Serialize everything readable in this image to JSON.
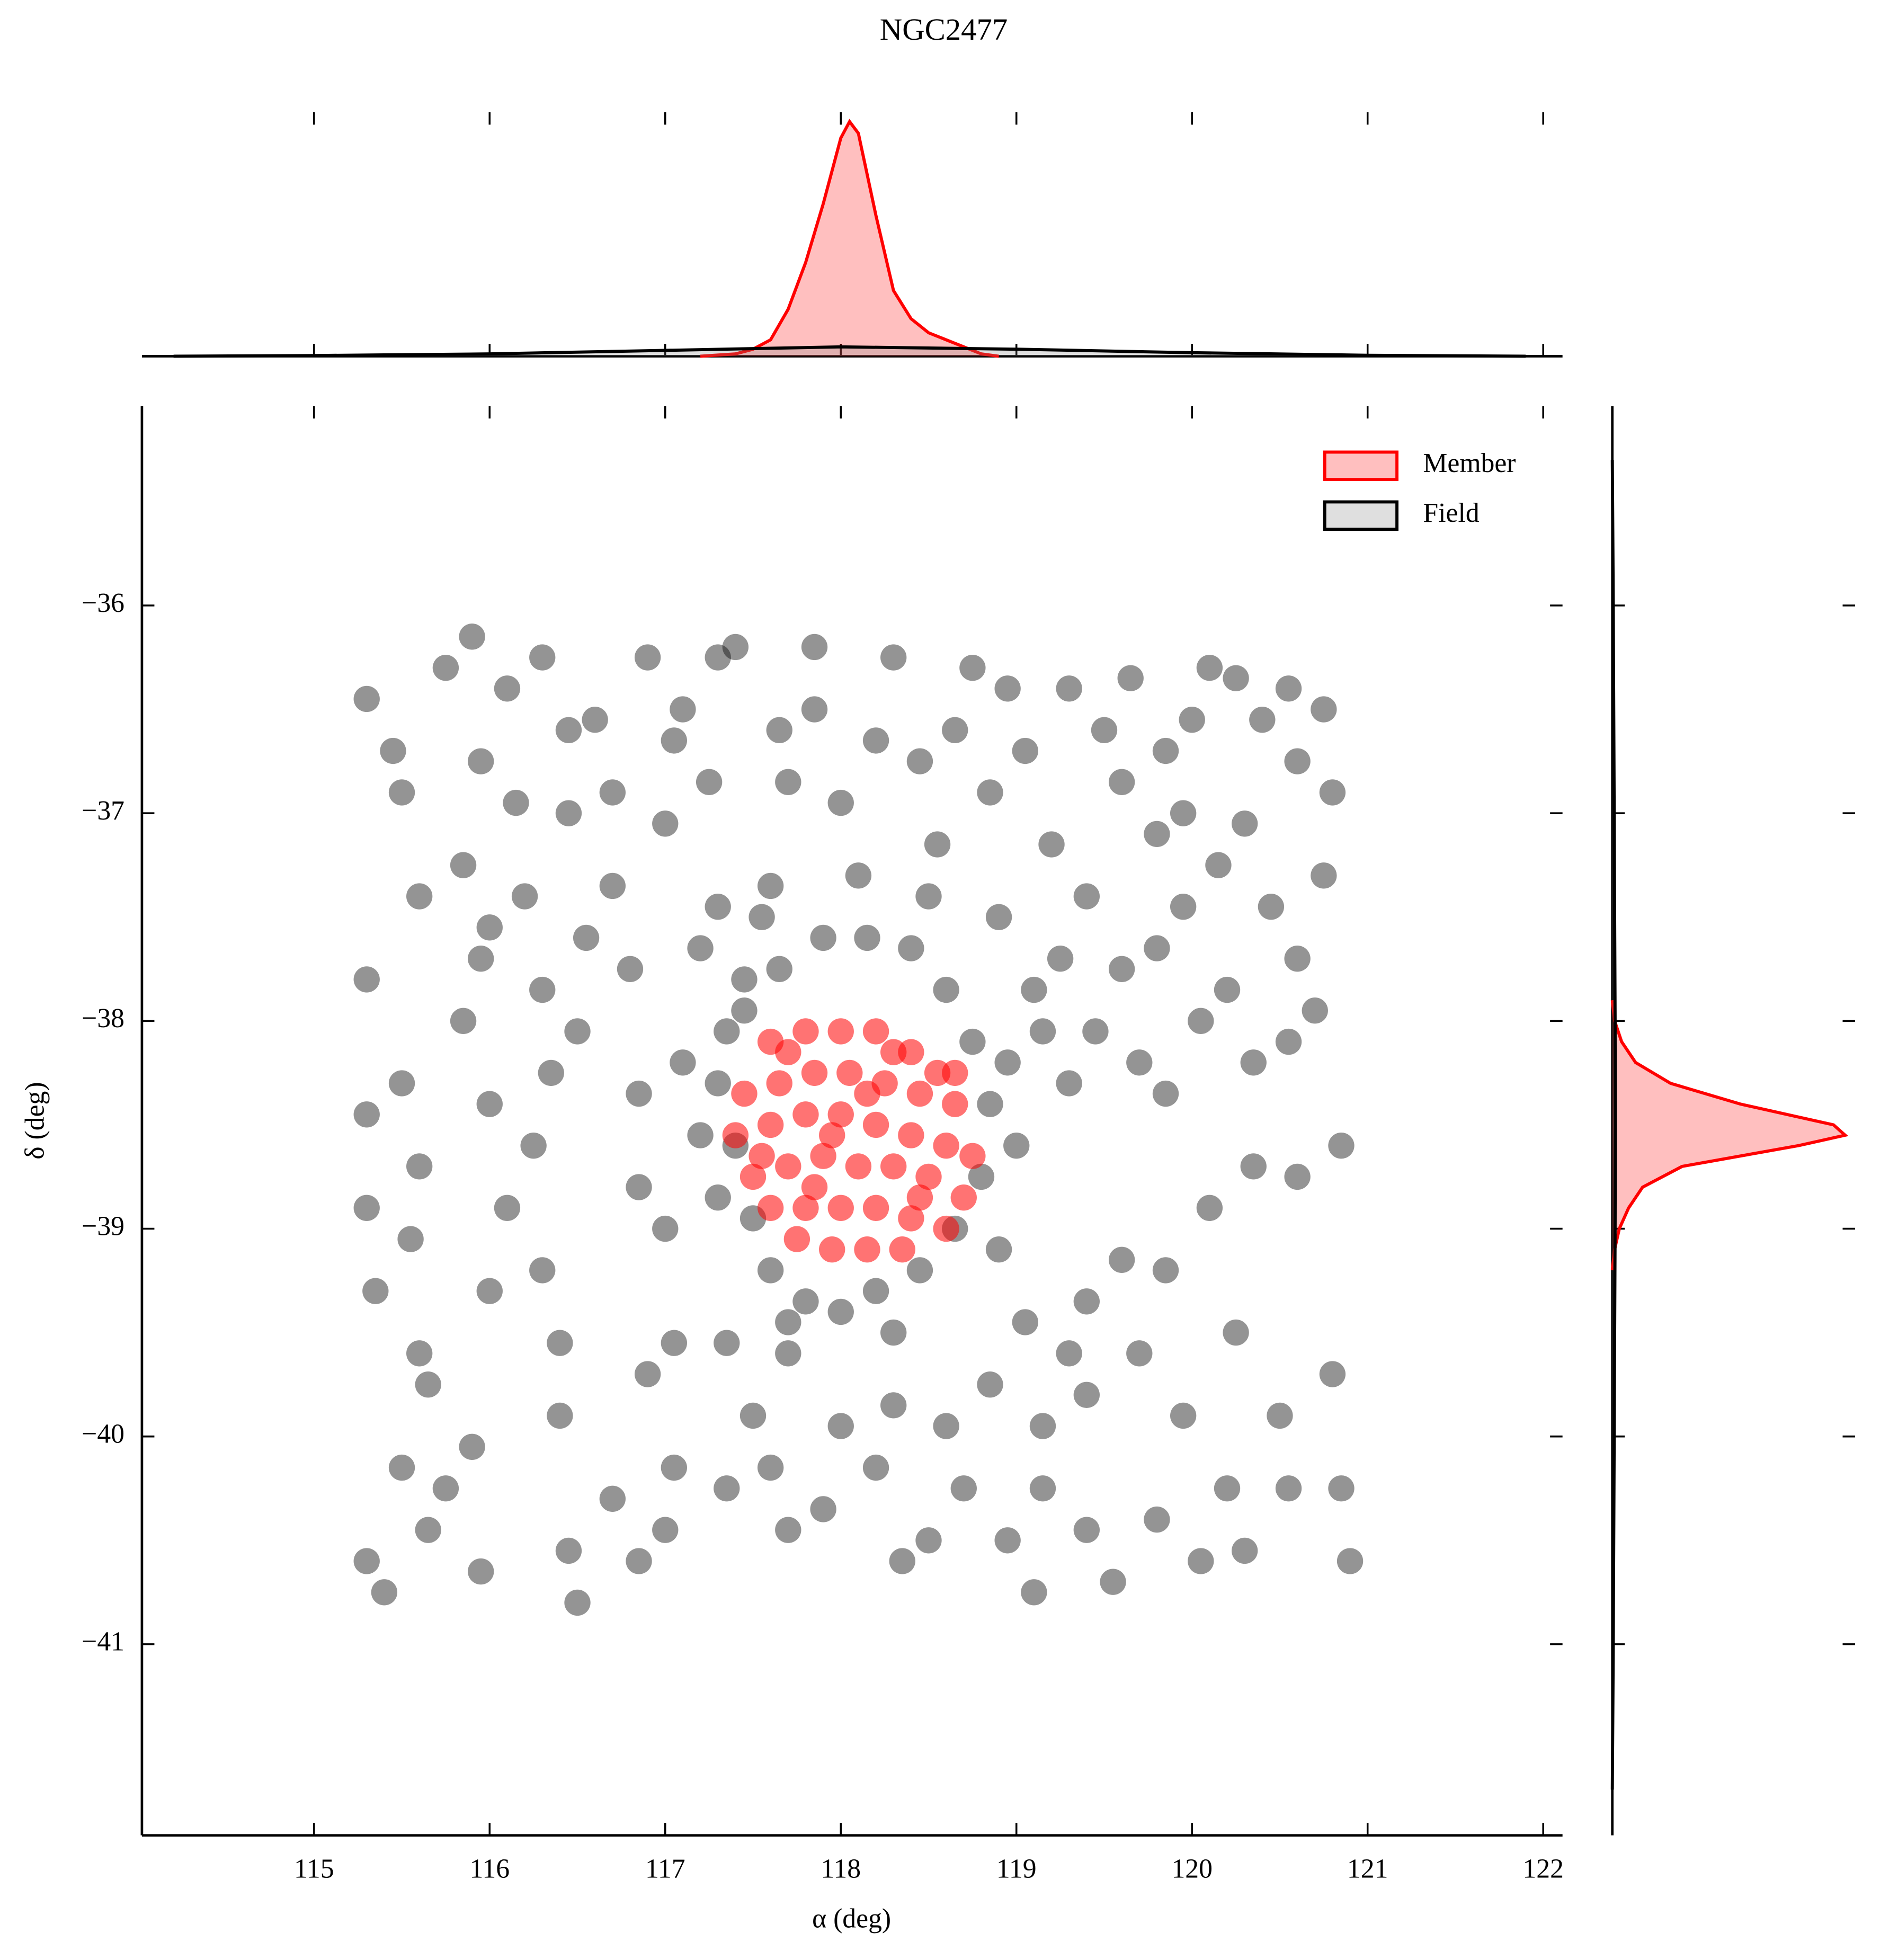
{
  "chart_data": [
    {
      "type": "area",
      "orientation": "vertical",
      "xlim": [
        114.02,
        122.11
      ],
      "ylim": [
        0,
        1.04
      ],
      "xticks": [
        115,
        116,
        117,
        118,
        119,
        120,
        121,
        122
      ],
      "series": [
        {
          "color": "#ff0000",
          "x": [
            117.2,
            117.4,
            117.5,
            117.6,
            117.7,
            117.8,
            117.9,
            118.0,
            118.05,
            118.1,
            118.2,
            118.3,
            118.4,
            118.5,
            118.6,
            118.7,
            118.8,
            118.9
          ],
          "values": [
            0,
            0.01,
            0.03,
            0.07,
            0.2,
            0.4,
            0.65,
            0.93,
            1.0,
            0.95,
            0.6,
            0.28,
            0.16,
            0.1,
            0.07,
            0.04,
            0.01,
            0
          ]
        },
        {
          "color": "#000000",
          "x": [
            114.2,
            115,
            116,
            117,
            118,
            119,
            120,
            121,
            121.9
          ],
          "values": [
            0,
            0.003,
            0.01,
            0.025,
            0.04,
            0.03,
            0.015,
            0.004,
            0
          ]
        }
      ]
    },
    {
      "type": "scatter",
      "title": "NGC2477",
      "xlabel": "α (deg)",
      "ylabel": "δ (deg)",
      "xlim": [
        114.02,
        122.11
      ],
      "ylim": [
        -41.92,
        -35.04
      ],
      "xticks": [
        115,
        116,
        117,
        118,
        119,
        120,
        121,
        122
      ],
      "yticks": [
        {
          "value": -36,
          "label": "−36"
        },
        {
          "value": -37,
          "label": "−37"
        },
        {
          "value": -38,
          "label": "−38"
        },
        {
          "value": -39,
          "label": "−39"
        },
        {
          "value": -40,
          "label": "−40"
        },
        {
          "value": -41,
          "label": "−41"
        }
      ],
      "legend": "upper right",
      "series": [
        {
          "name": "Member",
          "color": "#ff0000",
          "x": [
            117.6,
            117.8,
            118.0,
            118.2,
            118.4,
            118.55,
            117.45,
            117.65,
            117.85,
            118.05,
            118.25,
            118.45,
            118.65,
            117.4,
            117.6,
            117.8,
            118.0,
            118.2,
            118.4,
            118.6,
            118.75,
            117.5,
            117.7,
            117.9,
            118.1,
            118.3,
            118.5,
            118.7,
            117.6,
            117.8,
            118.0,
            118.2,
            118.4,
            118.6,
            117.75,
            117.95,
            118.15,
            118.35,
            117.7,
            118.3,
            117.55,
            118.65,
            117.95,
            118.15,
            118.45,
            117.85
          ],
          "values": [
            -38.1,
            -38.05,
            -38.05,
            -38.05,
            -38.15,
            -38.25,
            -38.35,
            -38.3,
            -38.25,
            -38.25,
            -38.3,
            -38.35,
            -38.4,
            -38.55,
            -38.5,
            -38.45,
            -38.45,
            -38.5,
            -38.55,
            -38.6,
            -38.65,
            -38.75,
            -38.7,
            -38.65,
            -38.7,
            -38.7,
            -38.75,
            -38.85,
            -38.9,
            -38.9,
            -38.9,
            -38.9,
            -38.95,
            -39.0,
            -39.05,
            -39.1,
            -39.1,
            -39.1,
            -38.15,
            -38.15,
            -38.65,
            -38.25,
            -38.55,
            -38.35,
            -38.85,
            -38.8
          ]
        },
        {
          "name": "Field",
          "color": "#000000",
          "x": [
            115.3,
            115.45,
            115.5,
            115.6,
            115.3,
            115.5,
            115.3,
            115.6,
            115.3,
            115.35,
            115.55,
            115.6,
            115.65,
            115.5,
            115.65,
            115.3,
            115.4,
            115.75,
            115.9,
            115.95,
            116.0,
            116.1,
            116.0,
            115.85,
            115.95,
            116.0,
            115.85,
            115.95,
            115.75,
            115.9,
            116.1,
            116.15,
            116.2,
            116.3,
            116.35,
            116.25,
            116.3,
            116.4,
            116.4,
            116.45,
            116.5,
            116.5,
            116.55,
            116.45,
            116.45,
            116.3,
            116.6,
            116.7,
            116.7,
            116.8,
            116.85,
            116.85,
            116.9,
            116.7,
            116.85,
            117.0,
            117.05,
            117.05,
            117.0,
            117.0,
            117.05,
            116.9,
            117.1,
            117.3,
            117.4,
            117.25,
            117.3,
            117.2,
            117.45,
            117.6,
            117.7,
            117.65,
            117.85,
            117.85,
            118.0,
            118.1,
            118.2,
            118.3,
            118.45,
            118.55,
            118.65,
            118.75,
            118.85,
            118.9,
            118.95,
            119.05,
            119.2,
            119.3,
            119.5,
            119.6,
            119.65,
            119.8,
            119.85,
            119.95,
            120.0,
            120.1,
            120.25,
            120.4,
            120.55,
            120.6,
            120.75,
            120.8,
            120.75,
            120.6,
            120.45,
            120.3,
            120.15,
            119.95,
            119.8,
            119.6,
            119.4,
            119.25,
            119.1,
            119.15,
            119.3,
            119.45,
            119.7,
            119.85,
            120.05,
            120.2,
            120.35,
            120.55,
            120.7,
            120.85,
            120.6,
            120.35,
            120.1,
            119.85,
            119.6,
            119.4,
            119.3,
            119.05,
            118.85,
            119.15,
            119.4,
            119.7,
            119.95,
            120.25,
            120.5,
            120.8,
            120.85,
            120.55,
            120.3,
            120.05,
            119.8,
            119.55,
            119.4,
            119.15,
            119.1,
            118.95,
            118.7,
            118.5,
            118.35,
            118.2,
            118.0,
            117.9,
            117.7,
            117.6,
            117.5,
            117.35,
            117.35,
            117.7,
            118.3,
            118.6,
            120.2,
            120.9,
            117.3,
            117.4,
            117.5,
            117.6,
            117.8,
            118.0,
            118.2,
            118.45,
            118.65,
            118.8,
            118.85,
            118.75,
            118.6,
            118.4,
            118.15,
            117.9,
            117.65,
            117.45,
            117.35,
            117.2,
            117.3,
            117.7,
            118.3,
            118.9,
            119.0,
            118.95,
            117.1,
            117.55,
            118.5
          ],
          "values": [
            -36.45,
            -36.7,
            -36.9,
            -37.4,
            -37.8,
            -38.3,
            -38.45,
            -38.7,
            -38.9,
            -39.3,
            -39.05,
            -39.6,
            -39.75,
            -40.15,
            -40.45,
            -40.6,
            -40.75,
            -40.25,
            -40.05,
            -40.65,
            -39.3,
            -38.9,
            -38.4,
            -38.0,
            -37.7,
            -37.55,
            -37.25,
            -36.75,
            -36.3,
            -36.15,
            -36.4,
            -36.95,
            -37.4,
            -37.85,
            -38.25,
            -38.6,
            -39.2,
            -39.55,
            -39.9,
            -40.55,
            -40.8,
            -38.05,
            -37.6,
            -37.0,
            -36.6,
            -36.25,
            -36.55,
            -36.9,
            -37.35,
            -37.75,
            -38.35,
            -38.8,
            -39.7,
            -40.3,
            -40.6,
            -40.45,
            -40.15,
            -39.55,
            -39.0,
            -37.05,
            -36.65,
            -36.25,
            -36.5,
            -36.25,
            -36.2,
            -36.85,
            -37.45,
            -37.65,
            -37.8,
            -37.35,
            -36.85,
            -36.6,
            -36.2,
            -36.5,
            -36.95,
            -37.3,
            -36.65,
            -36.25,
            -36.75,
            -37.15,
            -36.6,
            -36.3,
            -36.9,
            -37.5,
            -36.4,
            -36.7,
            -37.15,
            -36.4,
            -36.6,
            -36.85,
            -36.35,
            -37.1,
            -36.7,
            -37.0,
            -36.55,
            -36.3,
            -36.35,
            -36.55,
            -36.4,
            -36.75,
            -36.5,
            -36.9,
            -37.3,
            -37.7,
            -37.45,
            -37.05,
            -37.25,
            -37.45,
            -37.65,
            -37.75,
            -37.4,
            -37.7,
            -37.85,
            -38.05,
            -38.3,
            -38.05,
            -38.2,
            -38.35,
            -38.0,
            -37.85,
            -38.2,
            -38.1,
            -37.95,
            -38.6,
            -38.75,
            -38.7,
            -38.9,
            -39.2,
            -39.15,
            -39.35,
            -39.6,
            -39.45,
            -39.75,
            -39.95,
            -39.8,
            -39.6,
            -39.9,
            -39.5,
            -39.9,
            -39.7,
            -40.25,
            -40.25,
            -40.55,
            -40.6,
            -40.4,
            -40.7,
            -40.45,
            -40.25,
            -40.75,
            -40.5,
            -40.25,
            -40.5,
            -40.6,
            -40.15,
            -39.95,
            -40.35,
            -40.45,
            -40.15,
            -39.9,
            -40.25,
            -39.55,
            -39.6,
            -39.85,
            -39.95,
            -40.25,
            -40.6,
            -38.3,
            -38.6,
            -38.95,
            -39.2,
            -39.35,
            -39.4,
            -39.3,
            -39.2,
            -39.0,
            -38.75,
            -38.4,
            -38.1,
            -37.85,
            -37.65,
            -37.6,
            -37.6,
            -37.75,
            -37.95,
            -38.05,
            -38.55,
            -38.85,
            -39.45,
            -39.5,
            -39.1,
            -38.6,
            -38.2,
            -38.2,
            -37.5,
            -37.4
          ]
        }
      ]
    },
    {
      "type": "area",
      "orientation": "horizontal",
      "ylim": [
        -41.92,
        -35.04
      ],
      "xlim": [
        0,
        1.0
      ],
      "yticks": [
        -36,
        -37,
        -38,
        -39,
        -40,
        -41
      ],
      "series": [
        {
          "color": "#ff0000",
          "y": [
            -37.9,
            -38.0,
            -38.1,
            -38.2,
            -38.3,
            -38.4,
            -38.5,
            -38.55,
            -38.6,
            -38.7,
            -38.8,
            -38.9,
            -39.0,
            -39.1,
            -39.2
          ],
          "values": [
            0,
            0.01,
            0.04,
            0.1,
            0.25,
            0.55,
            0.95,
            1.0,
            0.8,
            0.3,
            0.13,
            0.07,
            0.03,
            0.01,
            0
          ]
        },
        {
          "color": "#000000",
          "y": [
            -35.3,
            -36,
            -37,
            -38,
            -38.5,
            -39,
            -40,
            -41,
            -41.7
          ],
          "values": [
            0,
            0.004,
            0.008,
            0.012,
            0.013,
            0.012,
            0.008,
            0.004,
            0
          ]
        }
      ]
    }
  ]
}
